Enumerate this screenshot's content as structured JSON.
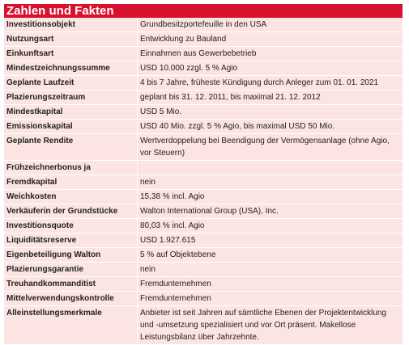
{
  "header": {
    "title": "Zahlen und Fakten"
  },
  "table": {
    "rows": [
      [
        "Investitionsobjekt",
        "Grundbesitzportefeuille in den USA"
      ],
      [
        "Nutzungsart",
        "Entwicklung zu Bauland"
      ],
      [
        "Einkunftsart",
        "Einnahmen aus Gewerbebetrieb"
      ],
      [
        "Mindestzeichnungssumme",
        "USD 10.000 zzgl. 5 % Agio"
      ],
      [
        "Geplante Laufzeit",
        "4 bis 7 Jahre, früheste Kündigung durch Anleger zum 01. 01. 2021"
      ],
      [
        "Plazierungszeitraum",
        "geplant bis 31. 12. 2011, bis maximal 21. 12. 2012"
      ],
      [
        "Mindestkapital",
        "USD 5 Mio."
      ],
      [
        "Emissionskapital",
        "USD 40 Mio. zzgl. 5 % Agio, bis maximal USD 50 Mio."
      ],
      [
        "Geplante Rendite",
        "Wertverdoppelung bei Beendigung der Vermögensanlage (ohne Agio, vor Steuern)"
      ],
      [
        "Frühzeichnerbonus ja"
      ],
      [
        "Fremdkapital",
        "nein"
      ],
      [
        "Weichkosten",
        "15,38 % incl. Agio"
      ],
      [
        "Verkäuferin der Grundstücke",
        "Walton International Group (USA), Inc."
      ],
      [
        "Investitionsquote",
        "80,03 % incl. Agio"
      ],
      [
        "Liquiditätsreserve",
        "USD 1.927.615"
      ],
      [
        "Eigenbeteiligung Walton",
        "5 % auf Objektebene"
      ],
      [
        "Plazierungsgarantie",
        "nein"
      ],
      [
        "Treuhandkommanditist",
        "Fremdunternehmen"
      ],
      [
        "Mittelverwendungskontrolle",
        "Fremdunternehmen"
      ],
      [
        "Alleinstellungsmerkmale",
        "Anbieter ist seit Jahren auf sämtliche Ebenen der Projektentwicklung und -umsetzung spezialisiert und vor Ort präsent. Makellose Leistungsbilanz über Jahrzehnte."
      ]
    ]
  }
}
